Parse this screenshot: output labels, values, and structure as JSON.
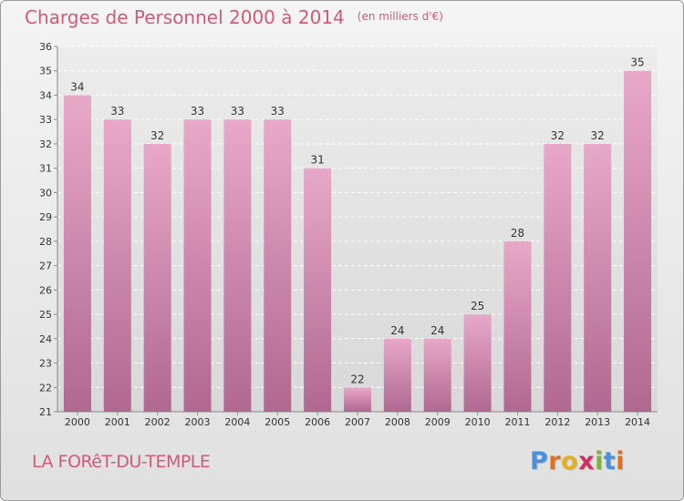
{
  "chart_data": {
    "type": "bar",
    "title": "Charges de Personnel 2000 à 2014",
    "subtitle": "(en milliers d'€)",
    "categories": [
      "2000",
      "2001",
      "2002",
      "2003",
      "2004",
      "2005",
      "2006",
      "2007",
      "2008",
      "2009",
      "2010",
      "2011",
      "2012",
      "2013",
      "2014"
    ],
    "values": [
      34,
      33,
      32,
      33,
      33,
      33,
      31,
      22,
      24,
      24,
      25,
      28,
      32,
      32,
      35
    ],
    "ylim": [
      21,
      36
    ],
    "yticks": [
      21,
      22,
      23,
      24,
      25,
      26,
      27,
      28,
      29,
      30,
      31,
      32,
      33,
      34,
      35,
      36
    ],
    "grid": true,
    "bar_color_top": "#e8a8c8",
    "bar_color_bottom": "#b06890"
  },
  "footer": {
    "place": "LA FORêT-DU-TEMPLE",
    "logo_letters": [
      "P",
      "r",
      "o",
      "x",
      "i",
      "t",
      "i"
    ],
    "logo_colors": [
      "#4a90d9",
      "#e07020",
      "#e0b020",
      "#d03060",
      "#80b040",
      "#4a90d9",
      "#e07020"
    ]
  },
  "colors": {
    "accent": "#d05a78"
  }
}
